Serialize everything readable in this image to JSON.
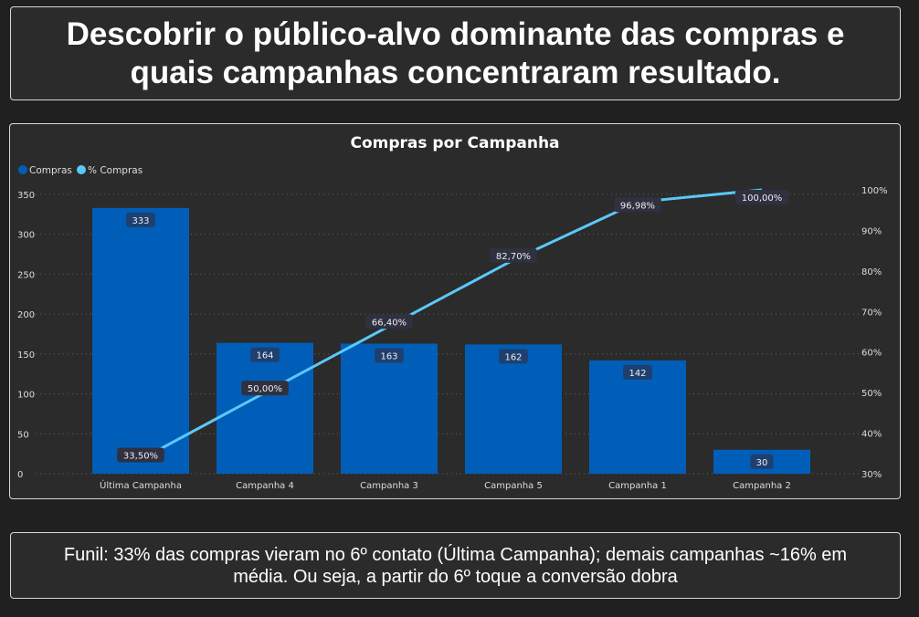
{
  "header": {
    "title": "Descobrir o público-alvo dominante das compras e quais campanhas concentraram resultado."
  },
  "footer": {
    "note": "Funil: 33% das compras vieram no 6º contato (Última Campanha); demais campanhas ~16% em média. Ou seja, a partir do 6º toque a conversão dobra"
  },
  "chart_data": {
    "type": "bar+line",
    "title": "Compras por Campanha",
    "categories": [
      "Última Campanha",
      "Campanha 4",
      "Campanha 3",
      "Campanha 5",
      "Campanha 1",
      "Campanha 2"
    ],
    "series": [
      {
        "name": "Compras",
        "type": "bar",
        "axis": "left",
        "color": "#005eb8",
        "values": [
          333,
          164,
          163,
          162,
          142,
          30
        ],
        "labels": [
          "333",
          "164",
          "163",
          "162",
          "142",
          "30"
        ]
      },
      {
        "name": "% Compras",
        "type": "line",
        "axis": "right",
        "color": "#5bc8fa",
        "values": [
          33.5,
          50.0,
          66.4,
          82.7,
          96.98,
          100.0
        ],
        "labels": [
          "33,50%",
          "50,00%",
          "66,40%",
          "82,70%",
          "96,98%",
          "100,00%"
        ]
      }
    ],
    "y_left": {
      "ylim": [
        0,
        350
      ],
      "ticks": [
        "0",
        "50",
        "100",
        "150",
        "200",
        "250",
        "300",
        "350"
      ]
    },
    "y_right": {
      "ylim": [
        30,
        100
      ],
      "ticks": [
        "30%",
        "40%",
        "50%",
        "60%",
        "70%",
        "80%",
        "90%",
        "100%"
      ]
    },
    "grid": true,
    "legend": "top-left"
  }
}
